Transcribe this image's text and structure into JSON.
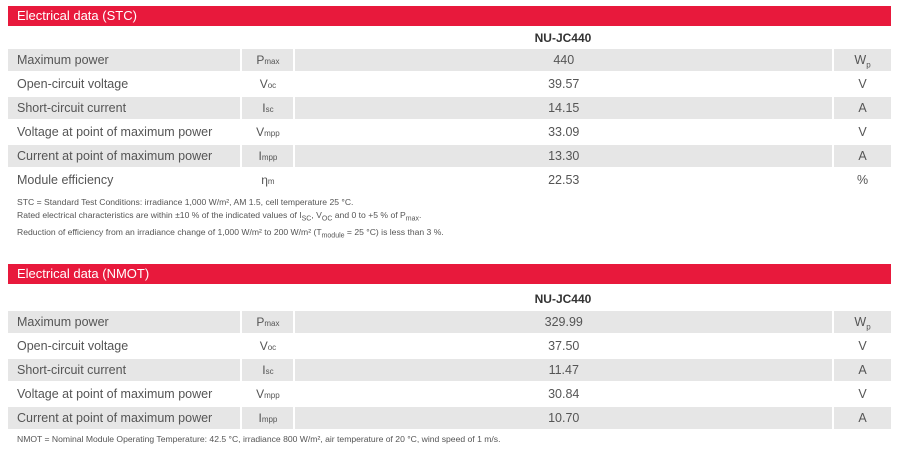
{
  "stc": {
    "title": "Electrical data (STC)",
    "model": "NU-JC440",
    "rows": [
      {
        "label": "Maximum power",
        "sym": "P",
        "sub": "max",
        "value": "440",
        "unit": "Wp"
      },
      {
        "label": "Open-circuit voltage",
        "sym": "V",
        "sub": "oc",
        "value": "39.57",
        "unit": "V"
      },
      {
        "label": "Short-circuit current",
        "sym": "I",
        "sub": "sc",
        "value": "14.15",
        "unit": "A"
      },
      {
        "label": "Voltage at point of maximum power",
        "sym": "V",
        "sub": "mpp",
        "value": "33.09",
        "unit": "V"
      },
      {
        "label": "Current at point of maximum power",
        "sym": "I",
        "sub": "mpp",
        "value": "13.30",
        "unit": "A"
      },
      {
        "label": "Module efficiency",
        "sym": "η",
        "sub": "m",
        "value": "22.53",
        "unit": "%"
      }
    ],
    "notes": [
      "STC = Standard Test Conditions: irradiance 1,000 W/m², AM 1.5, cell temperature 25 °C.",
      "Rated electrical characteristics are within ±10 % of the indicated values of I_SC, V_OC and 0 to +5 % of P_max.",
      "Reduction of efficiency from an irradiance change of 1,000 W/m² to 200 W/m² (T_module = 25 °C) is less than 3 %."
    ]
  },
  "nmot": {
    "title": "Electrical data (NMOT)",
    "model": "NU-JC440",
    "rows": [
      {
        "label": "Maximum power",
        "sym": "P",
        "sub": "max",
        "value": "329.99",
        "unit": "Wp"
      },
      {
        "label": "Open-circuit voltage",
        "sym": "V",
        "sub": "oc",
        "value": "37.50",
        "unit": "V"
      },
      {
        "label": "Short-circuit current",
        "sym": "I",
        "sub": "sc",
        "value": "11.47",
        "unit": "A"
      },
      {
        "label": "Voltage at point of maximum power",
        "sym": "V",
        "sub": "mpp",
        "value": "30.84",
        "unit": "V"
      },
      {
        "label": "Current at point of maximum power",
        "sym": "I",
        "sub": "mpp",
        "value": "10.70",
        "unit": "A"
      }
    ],
    "notes": [
      "NMOT = Nominal Module Operating Temperature: 42.5 °C, irradiance 800 W/m², air temperature of 20 °C, wind speed of 1 m/s."
    ]
  },
  "colors": {
    "accent": "#e8193c",
    "row_gray": "#e6e6e6"
  }
}
